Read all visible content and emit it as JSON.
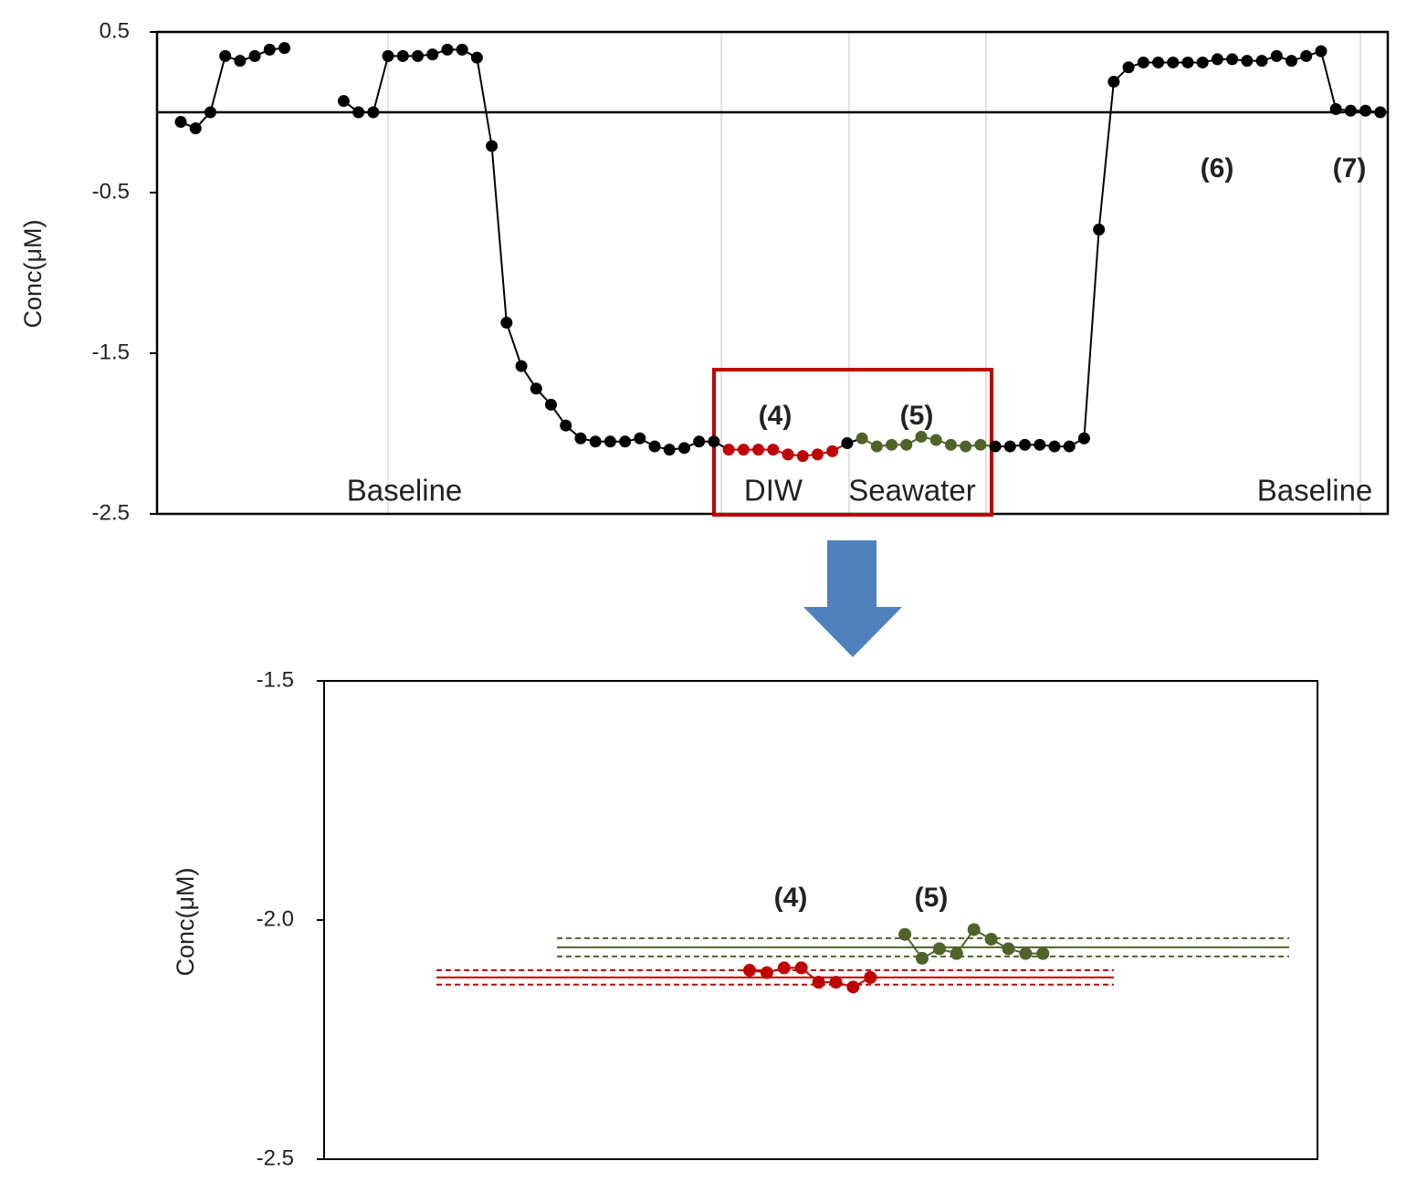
{
  "chart_data": [
    {
      "type": "line",
      "y_label": "Conc(μM)",
      "ylim": [
        -2.5,
        0.5
      ],
      "yticks": [
        0.5,
        -0.5,
        -1.5,
        -2.5
      ],
      "series": [
        {
          "color": "#000000",
          "values": [
            -0.06,
            -0.1,
            0.0,
            0.35,
            0.32,
            0.35,
            0.39,
            0.4,
            null,
            null,
            null,
            0.07,
            0.0,
            0.0,
            0.35,
            0.35,
            0.35,
            0.36,
            0.39,
            0.39,
            0.34,
            -0.21,
            -1.31,
            -1.58,
            -1.72,
            -1.82,
            -1.95,
            -2.03,
            -2.05,
            -2.05,
            -2.05,
            -2.03,
            -2.08,
            -2.1,
            -2.09,
            -2.05,
            -2.05,
            null,
            null,
            null,
            null,
            null,
            null,
            null,
            null,
            -2.06,
            null,
            null,
            null,
            null,
            null,
            null,
            null,
            null,
            null,
            -2.08,
            -2.08,
            -2.07,
            -2.07,
            -2.08,
            -2.08,
            -2.03,
            -0.73,
            0.19,
            0.28,
            0.31,
            0.31,
            0.31,
            0.31,
            0.31,
            0.33,
            0.33,
            0.32,
            0.32,
            0.35,
            0.32,
            0.35,
            0.38,
            0.02,
            0.01,
            0.01,
            0.0
          ]
        },
        {
          "color": "#c00000",
          "values": [
            null,
            null,
            null,
            null,
            null,
            null,
            null,
            null,
            null,
            null,
            null,
            null,
            null,
            null,
            null,
            null,
            null,
            null,
            null,
            null,
            null,
            null,
            null,
            null,
            null,
            null,
            null,
            null,
            null,
            null,
            null,
            null,
            null,
            null,
            null,
            null,
            null,
            -2.1,
            -2.1,
            -2.1,
            -2.1,
            -2.13,
            -2.14,
            -2.13,
            -2.11,
            null,
            null,
            null,
            null,
            null,
            null,
            null,
            null,
            null,
            null,
            null,
            null,
            null,
            null,
            null,
            null,
            null,
            null,
            null,
            null,
            null,
            null,
            null,
            null,
            null,
            null,
            null,
            null,
            null,
            null,
            null,
            null,
            null,
            null,
            null,
            null,
            null
          ]
        },
        {
          "color": "#4f6228",
          "values": [
            null,
            null,
            null,
            null,
            null,
            null,
            null,
            null,
            null,
            null,
            null,
            null,
            null,
            null,
            null,
            null,
            null,
            null,
            null,
            null,
            null,
            null,
            null,
            null,
            null,
            null,
            null,
            null,
            null,
            null,
            null,
            null,
            null,
            null,
            null,
            null,
            null,
            null,
            null,
            null,
            null,
            null,
            null,
            null,
            null,
            null,
            -2.03,
            -2.08,
            -2.07,
            -2.07,
            -2.02,
            -2.04,
            -2.07,
            -2.08,
            -2.07,
            null,
            null,
            null,
            null,
            null,
            null,
            null,
            null,
            null,
            null,
            null,
            null,
            null,
            null,
            null,
            null,
            null,
            null,
            null,
            null,
            null,
            null,
            null,
            null,
            null,
            null,
            null
          ]
        }
      ],
      "annotations": [
        "Baseline",
        "DIW",
        "Seawater",
        "Baseline",
        "(4)",
        "(5)",
        "(6)",
        "(7)"
      ]
    },
    {
      "type": "line",
      "y_label": "Conc(μM)",
      "ylim": [
        -2.5,
        -1.5
      ],
      "yticks": [
        -1.5,
        {
          "value": -2,
          "label": "-2.0"
        },
        -2.5
      ],
      "series": [
        {
          "color": "#c00000",
          "values": [
            -2.105,
            -2.11,
            -2.1,
            -2.1,
            -2.13,
            -2.13,
            -2.14,
            -2.12,
            null,
            null,
            null,
            null,
            null,
            null,
            null,
            null,
            null,
            null
          ]
        },
        {
          "color": "#4f6228",
          "values": [
            null,
            null,
            null,
            null,
            null,
            null,
            null,
            null,
            null,
            -2.03,
            -2.08,
            -2.06,
            -2.07,
            -2.02,
            -2.04,
            -2.06,
            -2.07,
            -2.07
          ]
        }
      ],
      "reference_lines": [
        {
          "color": "#c00000",
          "value": -2.12,
          "style": "solid"
        },
        {
          "color": "#c00000",
          "value": -2.105,
          "style": "dashed"
        },
        {
          "color": "#c00000",
          "value": -2.135,
          "style": "dashed"
        },
        {
          "color": "#4f6228",
          "value": -2.057,
          "style": "solid"
        },
        {
          "color": "#4f6228",
          "value": -2.038,
          "style": "dashed"
        },
        {
          "color": "#4f6228",
          "value": -2.076,
          "style": "dashed"
        }
      ],
      "annotations": [
        "(4)",
        "(5)"
      ]
    }
  ]
}
